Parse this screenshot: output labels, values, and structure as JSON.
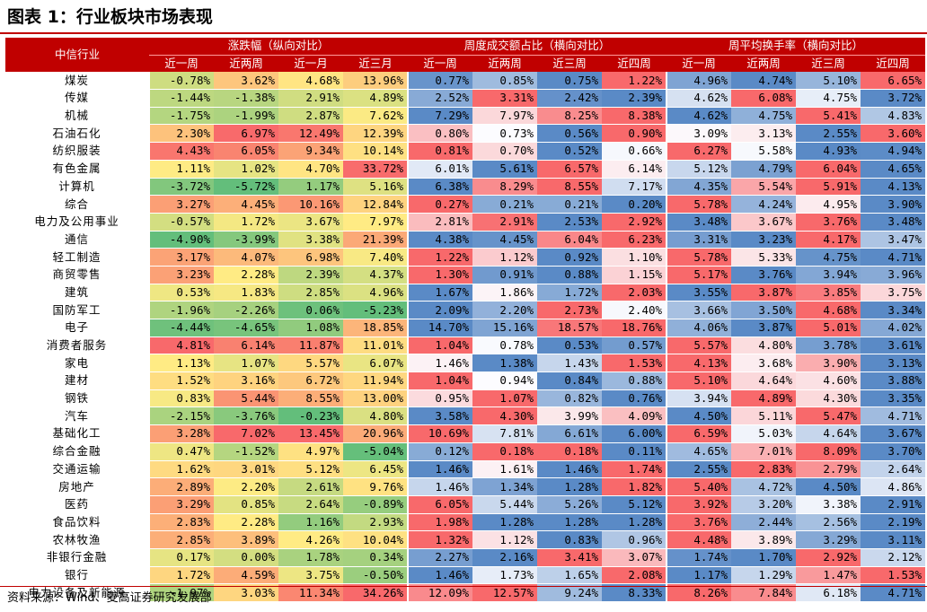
{
  "title": "图表 1：行业板块市场表现",
  "header": {
    "first_col": "中信行业",
    "groups": [
      "涨跌幅（纵向对比）",
      "周度成交额占比（横向对比）",
      "周平均换手率（横向对比）"
    ],
    "sub": {
      "change": [
        "近一周",
        "近两周",
        "近一月",
        "近三月"
      ],
      "share": [
        "近一周",
        "近两周",
        "近三周",
        "近四周"
      ],
      "turnover": [
        "近一周",
        "近两周",
        "近三周",
        "近四周"
      ]
    }
  },
  "rows": [
    {
      "name": "煤炭",
      "change": [
        "-0.78%",
        "3.62%",
        "4.68%",
        "13.96%"
      ],
      "share": [
        "0.77%",
        "0.85%",
        "0.75%",
        "1.22%"
      ],
      "turnover": [
        "4.96%",
        "4.74%",
        "5.10%",
        "6.65%"
      ]
    },
    {
      "name": "传媒",
      "change": [
        "-1.44%",
        "-1.38%",
        "2.91%",
        "4.89%"
      ],
      "share": [
        "2.52%",
        "3.31%",
        "2.42%",
        "2.39%"
      ],
      "turnover": [
        "4.62%",
        "6.08%",
        "4.75%",
        "3.72%"
      ]
    },
    {
      "name": "机械",
      "change": [
        "-1.75%",
        "-1.99%",
        "2.87%",
        "7.62%"
      ],
      "share": [
        "7.29%",
        "7.97%",
        "8.25%",
        "8.38%"
      ],
      "turnover": [
        "4.62%",
        "4.75%",
        "5.41%",
        "4.83%"
      ]
    },
    {
      "name": "石油石化",
      "change": [
        "2.30%",
        "6.97%",
        "12.49%",
        "12.39%"
      ],
      "share": [
        "0.80%",
        "0.73%",
        "0.56%",
        "0.90%"
      ],
      "turnover": [
        "3.09%",
        "3.13%",
        "2.55%",
        "3.60%"
      ]
    },
    {
      "name": "纺织服装",
      "change": [
        "4.43%",
        "6.05%",
        "9.34%",
        "10.14%"
      ],
      "share": [
        "0.81%",
        "0.70%",
        "0.52%",
        "0.66%"
      ],
      "turnover": [
        "6.27%",
        "5.58%",
        "4.93%",
        "4.94%"
      ]
    },
    {
      "name": "有色金属",
      "change": [
        "1.11%",
        "1.02%",
        "4.70%",
        "33.72%"
      ],
      "share": [
        "6.01%",
        "5.61%",
        "6.57%",
        "6.14%"
      ],
      "turnover": [
        "5.12%",
        "4.79%",
        "6.04%",
        "4.65%"
      ]
    },
    {
      "name": "计算机",
      "change": [
        "-3.72%",
        "-5.72%",
        "1.17%",
        "5.16%"
      ],
      "share": [
        "6.38%",
        "8.29%",
        "8.55%",
        "7.17%"
      ],
      "turnover": [
        "4.35%",
        "5.54%",
        "5.91%",
        "4.13%"
      ]
    },
    {
      "name": "综合",
      "change": [
        "3.27%",
        "4.45%",
        "10.16%",
        "12.84%"
      ],
      "share": [
        "0.27%",
        "0.21%",
        "0.21%",
        "0.20%"
      ],
      "turnover": [
        "5.78%",
        "4.24%",
        "4.95%",
        "3.90%"
      ]
    },
    {
      "name": "电力及公用事业",
      "change": [
        "-0.57%",
        "1.72%",
        "3.67%",
        "7.97%"
      ],
      "share": [
        "2.81%",
        "2.91%",
        "2.53%",
        "2.92%"
      ],
      "turnover": [
        "3.48%",
        "3.67%",
        "3.76%",
        "3.48%"
      ]
    },
    {
      "name": "通信",
      "change": [
        "-4.90%",
        "-3.99%",
        "3.38%",
        "21.39%"
      ],
      "share": [
        "4.38%",
        "4.45%",
        "6.04%",
        "6.23%"
      ],
      "turnover": [
        "3.31%",
        "3.23%",
        "4.17%",
        "3.47%"
      ]
    },
    {
      "name": "轻工制造",
      "change": [
        "3.17%",
        "4.07%",
        "6.98%",
        "7.40%"
      ],
      "share": [
        "1.22%",
        "1.12%",
        "0.92%",
        "1.10%"
      ],
      "turnover": [
        "5.78%",
        "5.33%",
        "4.75%",
        "4.71%"
      ]
    },
    {
      "name": "商贸零售",
      "change": [
        "3.23%",
        "2.28%",
        "2.39%",
        "4.37%"
      ],
      "share": [
        "1.30%",
        "0.91%",
        "0.88%",
        "1.15%"
      ],
      "turnover": [
        "5.17%",
        "3.76%",
        "3.94%",
        "3.96%"
      ]
    },
    {
      "name": "建筑",
      "change": [
        "0.53%",
        "1.83%",
        "2.85%",
        "4.96%"
      ],
      "share": [
        "1.67%",
        "1.86%",
        "1.72%",
        "2.03%"
      ],
      "turnover": [
        "3.55%",
        "3.87%",
        "3.85%",
        "3.75%"
      ]
    },
    {
      "name": "国防军工",
      "change": [
        "-1.96%",
        "-2.26%",
        "0.06%",
        "-5.23%"
      ],
      "share": [
        "2.09%",
        "2.20%",
        "2.73%",
        "2.40%"
      ],
      "turnover": [
        "3.66%",
        "3.50%",
        "4.68%",
        "3.34%"
      ]
    },
    {
      "name": "电子",
      "change": [
        "-4.44%",
        "-4.65%",
        "1.08%",
        "18.85%"
      ],
      "share": [
        "14.70%",
        "15.16%",
        "18.57%",
        "18.76%"
      ],
      "turnover": [
        "4.06%",
        "3.87%",
        "5.01%",
        "4.02%"
      ]
    },
    {
      "name": "消费者服务",
      "change": [
        "4.81%",
        "6.14%",
        "11.87%",
        "11.01%"
      ],
      "share": [
        "1.04%",
        "0.78%",
        "0.53%",
        "0.57%"
      ],
      "turnover": [
        "5.57%",
        "4.80%",
        "3.78%",
        "3.61%"
      ]
    },
    {
      "name": "家电",
      "change": [
        "1.13%",
        "1.07%",
        "5.57%",
        "6.07%"
      ],
      "share": [
        "1.46%",
        "1.38%",
        "1.43%",
        "1.53%"
      ],
      "turnover": [
        "4.13%",
        "3.68%",
        "3.90%",
        "3.13%"
      ]
    },
    {
      "name": "建材",
      "change": [
        "1.52%",
        "3.16%",
        "6.72%",
        "11.94%"
      ],
      "share": [
        "1.04%",
        "0.94%",
        "0.84%",
        "0.88%"
      ],
      "turnover": [
        "5.10%",
        "4.64%",
        "4.60%",
        "3.88%"
      ]
    },
    {
      "name": "钢铁",
      "change": [
        "0.83%",
        "5.44%",
        "8.55%",
        "13.00%"
      ],
      "share": [
        "0.95%",
        "1.07%",
        "0.82%",
        "0.76%"
      ],
      "turnover": [
        "3.94%",
        "4.89%",
        "4.30%",
        "3.35%"
      ]
    },
    {
      "name": "汽车",
      "change": [
        "-2.15%",
        "-3.76%",
        "-0.23%",
        "4.80%"
      ],
      "share": [
        "3.58%",
        "4.30%",
        "3.99%",
        "4.09%"
      ],
      "turnover": [
        "4.50%",
        "5.11%",
        "5.47%",
        "4.71%"
      ]
    },
    {
      "name": "基础化工",
      "change": [
        "3.28%",
        "7.02%",
        "13.45%",
        "20.96%"
      ],
      "share": [
        "10.69%",
        "7.81%",
        "6.61%",
        "6.00%"
      ],
      "turnover": [
        "6.59%",
        "5.03%",
        "4.64%",
        "3.67%"
      ]
    },
    {
      "name": "综合金融",
      "change": [
        "0.47%",
        "-1.52%",
        "4.97%",
        "-5.04%"
      ],
      "share": [
        "0.12%",
        "0.18%",
        "0.18%",
        "0.11%"
      ],
      "turnover": [
        "4.65%",
        "7.01%",
        "8.09%",
        "3.70%"
      ]
    },
    {
      "name": "交通运输",
      "change": [
        "1.62%",
        "3.01%",
        "5.12%",
        "6.45%"
      ],
      "share": [
        "1.46%",
        "1.61%",
        "1.46%",
        "1.74%"
      ],
      "turnover": [
        "2.55%",
        "2.83%",
        "2.79%",
        "2.64%"
      ]
    },
    {
      "name": "房地产",
      "change": [
        "2.89%",
        "2.20%",
        "2.61%",
        "9.76%"
      ],
      "share": [
        "1.46%",
        "1.34%",
        "1.28%",
        "1.82%"
      ],
      "turnover": [
        "5.40%",
        "4.72%",
        "4.50%",
        "4.86%"
      ]
    },
    {
      "name": "医药",
      "change": [
        "3.29%",
        "0.85%",
        "2.64%",
        "-0.89%"
      ],
      "share": [
        "6.05%",
        "5.44%",
        "5.26%",
        "5.12%"
      ],
      "turnover": [
        "3.92%",
        "3.20%",
        "3.38%",
        "2.91%"
      ]
    },
    {
      "name": "食品饮料",
      "change": [
        "2.83%",
        "2.28%",
        "1.16%",
        "2.93%"
      ],
      "share": [
        "1.98%",
        "1.28%",
        "1.28%",
        "1.28%"
      ],
      "turnover": [
        "3.76%",
        "2.44%",
        "2.56%",
        "2.19%"
      ]
    },
    {
      "name": "农林牧渔",
      "change": [
        "2.85%",
        "3.89%",
        "4.26%",
        "10.04%"
      ],
      "share": [
        "1.32%",
        "1.12%",
        "0.83%",
        "0.96%"
      ],
      "turnover": [
        "4.48%",
        "3.89%",
        "3.29%",
        "3.11%"
      ]
    },
    {
      "name": "非银行金融",
      "change": [
        "0.17%",
        "0.00%",
        "1.78%",
        "0.34%"
      ],
      "share": [
        "2.27%",
        "2.16%",
        "3.41%",
        "3.07%"
      ],
      "turnover": [
        "1.74%",
        "1.70%",
        "2.92%",
        "2.12%"
      ]
    },
    {
      "name": "银行",
      "change": [
        "1.72%",
        "4.59%",
        "3.75%",
        "-0.50%"
      ],
      "share": [
        "1.46%",
        "1.73%",
        "1.65%",
        "2.08%"
      ],
      "turnover": [
        "1.17%",
        "1.29%",
        "1.47%",
        "1.53%"
      ]
    },
    {
      "name": "电力设备及新能源",
      "change": [
        "-1.97%",
        "3.03%",
        "11.34%",
        "34.26%"
      ],
      "share": [
        "12.09%",
        "12.57%",
        "9.24%",
        "8.33%"
      ],
      "turnover": [
        "8.26%",
        "7.84%",
        "6.18%",
        "4.71%"
      ]
    }
  ],
  "source": "资料来源：Wind、麦高证券研究发展部",
  "colors": {
    "header_bg": "#c00000",
    "scale_green": "#63be7b",
    "scale_yellow": "#ffeb84",
    "scale_red": "#f8696b",
    "scale_blue": "#5a8ac6",
    "scale_white": "#fcfcff"
  }
}
